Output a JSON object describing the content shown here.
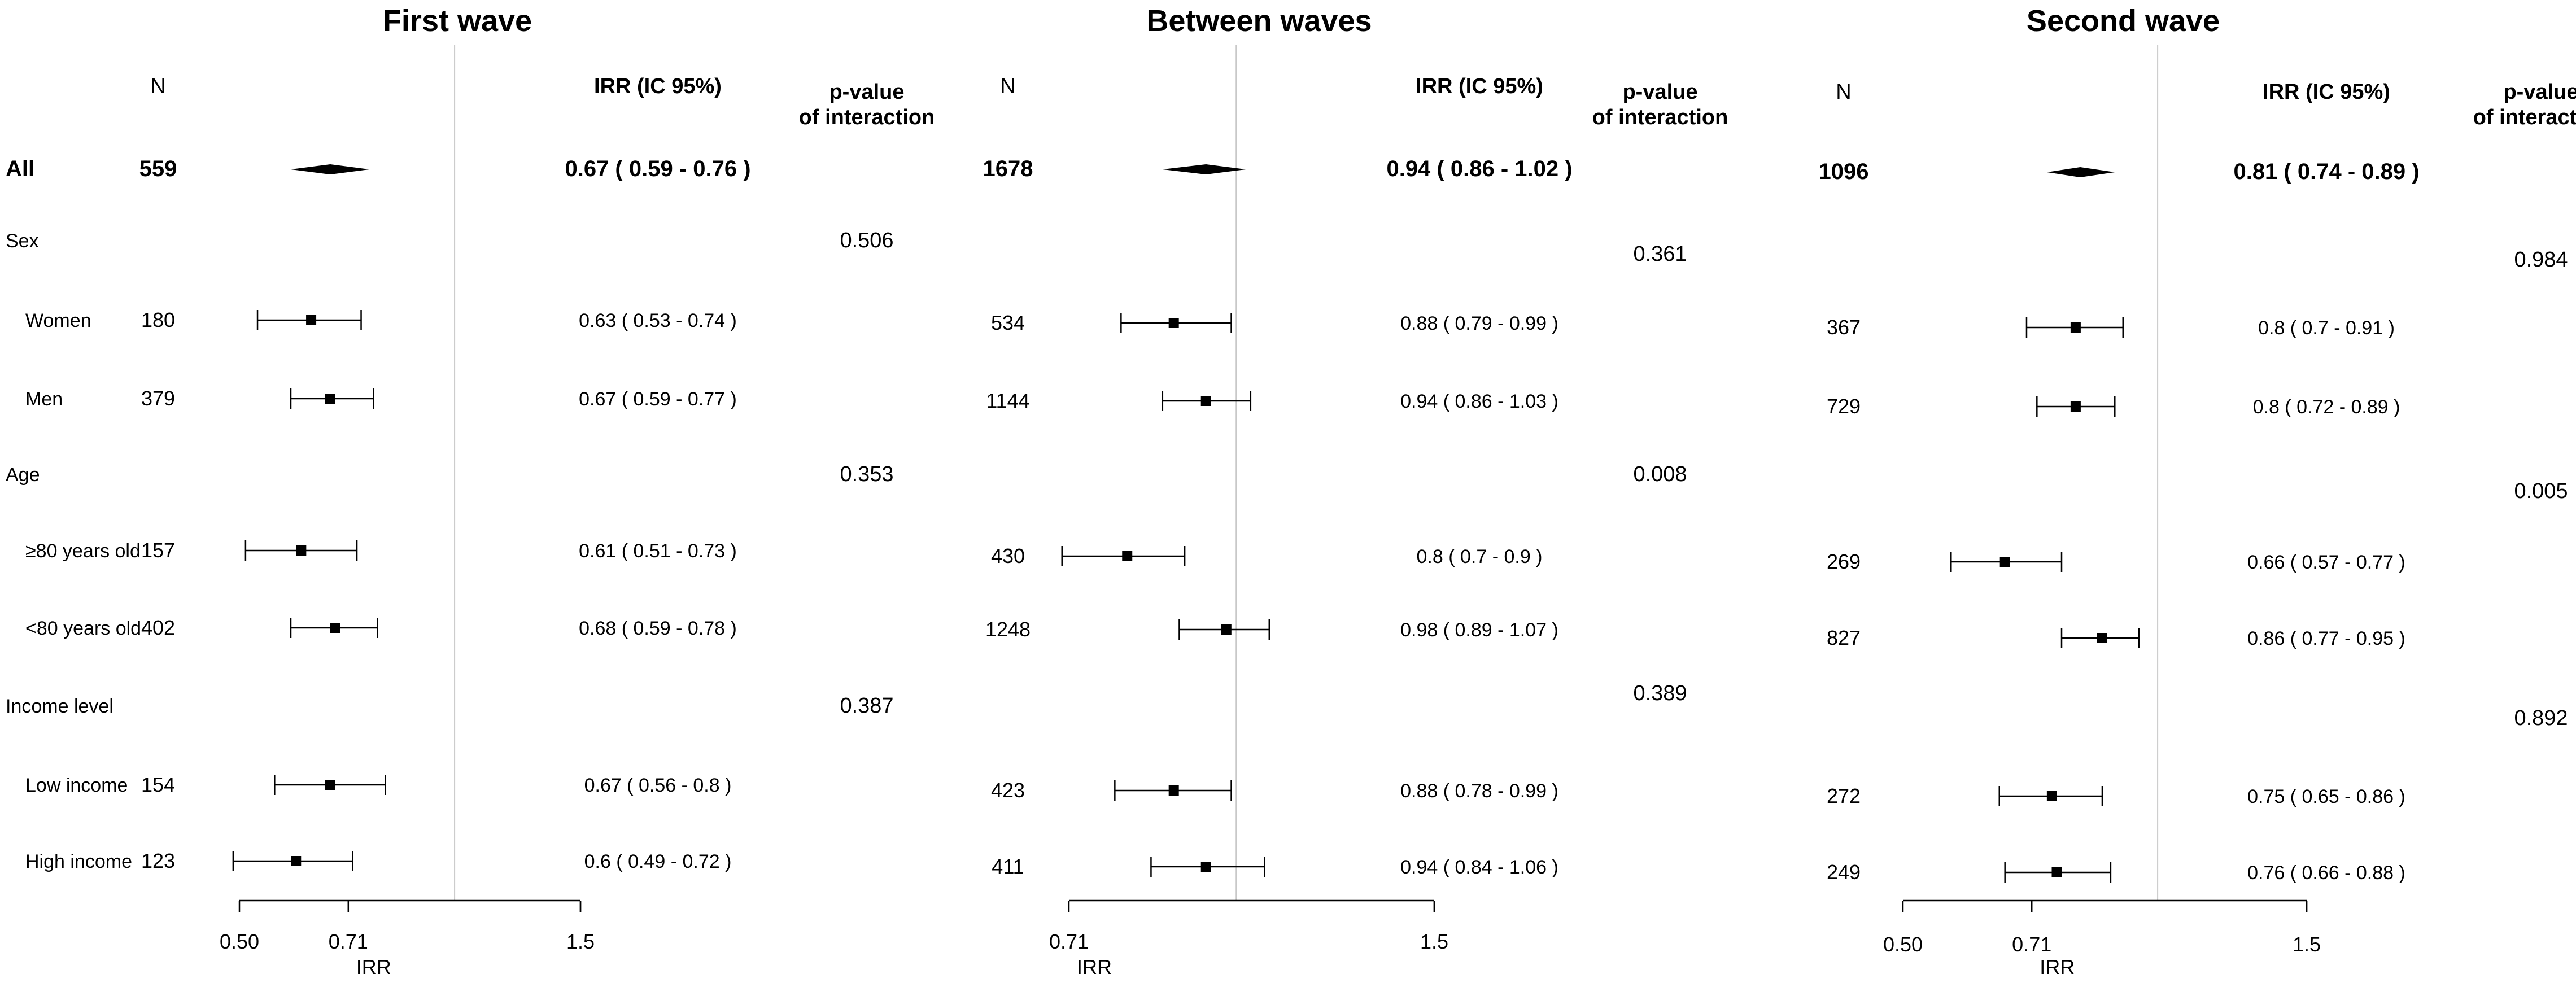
{
  "chart_data": [
    {
      "type": "forest",
      "title": "First wave",
      "headers": {
        "n": "N",
        "irr": "IRR (IC 95%)",
        "p_line1": "p-value",
        "p_line2": "of interaction"
      },
      "xlabel": "IRR",
      "x_scale": "log",
      "xlim": [
        0.5,
        1.5
      ],
      "xticks": [
        "0.50",
        "0.71",
        "1.5"
      ],
      "reference_line": 1.0,
      "rows": [
        {
          "label": "All",
          "n": "559",
          "irr": 0.67,
          "low": 0.59,
          "high": 0.76,
          "ci_text": "0.67 ( 0.59 - 0.76 )",
          "summary": true
        },
        {
          "label": "Sex",
          "group": true,
          "p_value": "0.506"
        },
        {
          "label": "Women",
          "n": "180",
          "irr": 0.63,
          "low": 0.53,
          "high": 0.74,
          "ci_text": "0.63 ( 0.53 - 0.74 )"
        },
        {
          "label": "Men",
          "n": "379",
          "irr": 0.67,
          "low": 0.59,
          "high": 0.77,
          "ci_text": "0.67 ( 0.59 - 0.77 )"
        },
        {
          "label": "Age",
          "group": true,
          "p_value": "0.353"
        },
        {
          "label": "≥80 years old",
          "n": "157",
          "irr": 0.61,
          "low": 0.51,
          "high": 0.73,
          "ci_text": "0.61 ( 0.51 - 0.73 )"
        },
        {
          "label": "<80 years old",
          "n": "402",
          "irr": 0.68,
          "low": 0.59,
          "high": 0.78,
          "ci_text": "0.68 ( 0.59 - 0.78 )"
        },
        {
          "label": "Income level",
          "group": true,
          "p_value": "0.387"
        },
        {
          "label": "Low income",
          "n": "154",
          "irr": 0.67,
          "low": 0.56,
          "high": 0.8,
          "ci_text": "0.67 ( 0.56 - 0.8 )"
        },
        {
          "label": "High income",
          "n": "123",
          "irr": 0.6,
          "low": 0.49,
          "high": 0.72,
          "ci_text": "0.6 ( 0.49 - 0.72 )"
        }
      ]
    },
    {
      "type": "forest",
      "title": "Between waves",
      "headers": {
        "n": "N",
        "irr": "IRR (IC 95%)",
        "p_line1": "p-value",
        "p_line2": "of interaction"
      },
      "xlabel": "IRR",
      "x_scale": "log",
      "xlim": [
        0.71,
        1.5
      ],
      "xticks": [
        "0.71",
        "1.5"
      ],
      "reference_line": 1.0,
      "rows": [
        {
          "n": "1678",
          "irr": 0.94,
          "low": 0.86,
          "high": 1.02,
          "ci_text": "0.94 ( 0.86 - 1.02 )",
          "summary": true
        },
        {
          "group": true,
          "p_value": "0.361"
        },
        {
          "n": "534",
          "irr": 0.88,
          "low": 0.79,
          "high": 0.99,
          "ci_text": "0.88 ( 0.79 - 0.99 )"
        },
        {
          "n": "1144",
          "irr": 0.94,
          "low": 0.86,
          "high": 1.03,
          "ci_text": "0.94 ( 0.86 - 1.03 )"
        },
        {
          "group": true,
          "p_value": "0.008"
        },
        {
          "n": "430",
          "irr": 0.8,
          "low": 0.7,
          "high": 0.9,
          "ci_text": "0.8 ( 0.7 - 0.9 )"
        },
        {
          "n": "1248",
          "irr": 0.98,
          "low": 0.89,
          "high": 1.07,
          "ci_text": "0.98 ( 0.89 - 1.07 )"
        },
        {
          "group": true,
          "p_value": "0.389"
        },
        {
          "n": "423",
          "irr": 0.88,
          "low": 0.78,
          "high": 0.99,
          "ci_text": "0.88 ( 0.78 - 0.99 )"
        },
        {
          "n": "411",
          "irr": 0.94,
          "low": 0.84,
          "high": 1.06,
          "ci_text": "0.94 ( 0.84 - 1.06 )"
        }
      ]
    },
    {
      "type": "forest",
      "title": "Second wave",
      "headers": {
        "n": "N",
        "irr": "IRR (IC 95%)",
        "p_line1": "p-value",
        "p_line2": "of interaction"
      },
      "xlabel": "IRR",
      "x_scale": "log",
      "xlim": [
        0.5,
        1.5
      ],
      "xticks": [
        "0.50",
        "0.71",
        "1.5"
      ],
      "reference_line": 1.0,
      "rows": [
        {
          "n": "1096",
          "irr": 0.81,
          "low": 0.74,
          "high": 0.89,
          "ci_text": "0.81 ( 0.74 - 0.89 )",
          "summary": true
        },
        {
          "group": true,
          "p_value": "0.984"
        },
        {
          "n": "367",
          "irr": 0.8,
          "low": 0.7,
          "high": 0.91,
          "ci_text": "0.8 ( 0.7 - 0.91 )"
        },
        {
          "n": "729",
          "irr": 0.8,
          "low": 0.72,
          "high": 0.89,
          "ci_text": "0.8 ( 0.72 - 0.89 )"
        },
        {
          "group": true,
          "p_value": "0.005"
        },
        {
          "n": "269",
          "irr": 0.66,
          "low": 0.57,
          "high": 0.77,
          "ci_text": "0.66 ( 0.57 - 0.77 )"
        },
        {
          "n": "827",
          "irr": 0.86,
          "low": 0.77,
          "high": 0.95,
          "ci_text": "0.86 ( 0.77 - 0.95 )"
        },
        {
          "group": true,
          "p_value": "0.892"
        },
        {
          "n": "272",
          "irr": 0.75,
          "low": 0.65,
          "high": 0.86,
          "ci_text": "0.75 ( 0.65 - 0.86 )"
        },
        {
          "n": "249",
          "irr": 0.76,
          "low": 0.66,
          "high": 0.88,
          "ci_text": "0.76 ( 0.66 - 0.88 )"
        }
      ]
    }
  ]
}
